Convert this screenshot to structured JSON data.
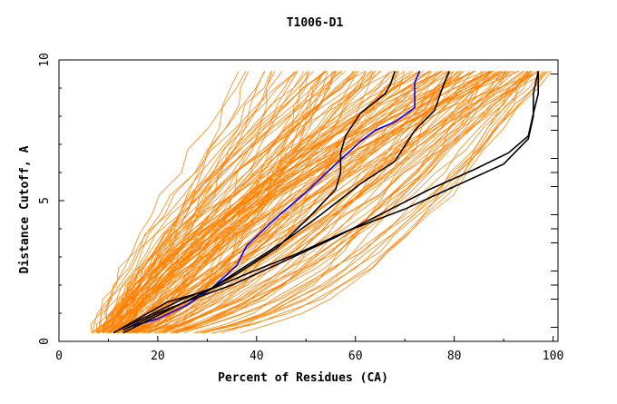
{
  "chart_data": {
    "type": "line",
    "title": "T1006-D1",
    "xlabel": "Percent of Residues (CA)",
    "ylabel": "Distance Cutoff, A",
    "xlim": [
      0,
      101
    ],
    "ylim": [
      0,
      10
    ],
    "x_ticks": [
      0,
      20,
      40,
      60,
      80,
      100
    ],
    "x_tick_labels": [
      "0",
      "20",
      "40",
      "60",
      "80",
      "100"
    ],
    "y_ticks": [
      0,
      5,
      10
    ],
    "y_tick_labels": [
      "0",
      "5",
      "10"
    ],
    "grid": false,
    "legend": "none",
    "colors": {
      "background_curves": "#ff8000",
      "highlight_curves": "#000000",
      "blue_curve": "#0000ff",
      "axes": "#000000"
    },
    "series": [
      {
        "color": "#0000ff",
        "x": [
          14,
          20,
          26,
          31,
          36,
          38,
          44,
          50,
          56,
          61,
          64,
          68,
          72,
          72,
          73
        ],
        "y": [
          0.5,
          0.8,
          1.3,
          1.9,
          2.7,
          3.4,
          4.4,
          5.3,
          6.3,
          7.1,
          7.5,
          7.8,
          8.3,
          9.2,
          9.6
        ]
      },
      {
        "color": "#000000",
        "x": [
          13,
          22,
          30,
          36,
          44,
          50,
          56,
          57,
          57,
          58,
          61,
          66,
          67,
          68
        ],
        "y": [
          0.3,
          1.1,
          1.8,
          2.4,
          3.3,
          4.3,
          5.4,
          6.0,
          6.7,
          7.3,
          8.1,
          8.8,
          9.1,
          9.6
        ]
      },
      {
        "color": "#000000",
        "x": [
          12,
          18,
          25,
          31,
          38,
          46,
          53,
          61,
          68,
          72,
          76,
          77,
          78,
          79
        ],
        "y": [
          0.4,
          0.9,
          1.5,
          1.9,
          2.7,
          3.6,
          4.5,
          5.6,
          6.4,
          7.5,
          8.2,
          8.7,
          9.2,
          9.6
        ]
      },
      {
        "color": "#000000",
        "x": [
          11,
          17,
          22,
          30,
          38,
          48,
          58,
          70,
          80,
          90,
          95,
          96,
          96,
          97
        ],
        "y": [
          0.3,
          0.9,
          1.4,
          1.8,
          2.4,
          3.1,
          3.9,
          4.7,
          5.5,
          6.3,
          7.2,
          8.0,
          8.8,
          9.6
        ]
      },
      {
        "color": "#000000",
        "x": [
          13,
          20,
          27,
          35,
          45,
          56,
          66,
          75,
          84,
          91,
          95,
          96,
          97,
          97
        ],
        "y": [
          0.4,
          1.0,
          1.5,
          2.0,
          2.8,
          3.7,
          4.6,
          5.4,
          6.1,
          6.7,
          7.3,
          8.1,
          8.8,
          9.6
        ]
      }
    ]
  }
}
